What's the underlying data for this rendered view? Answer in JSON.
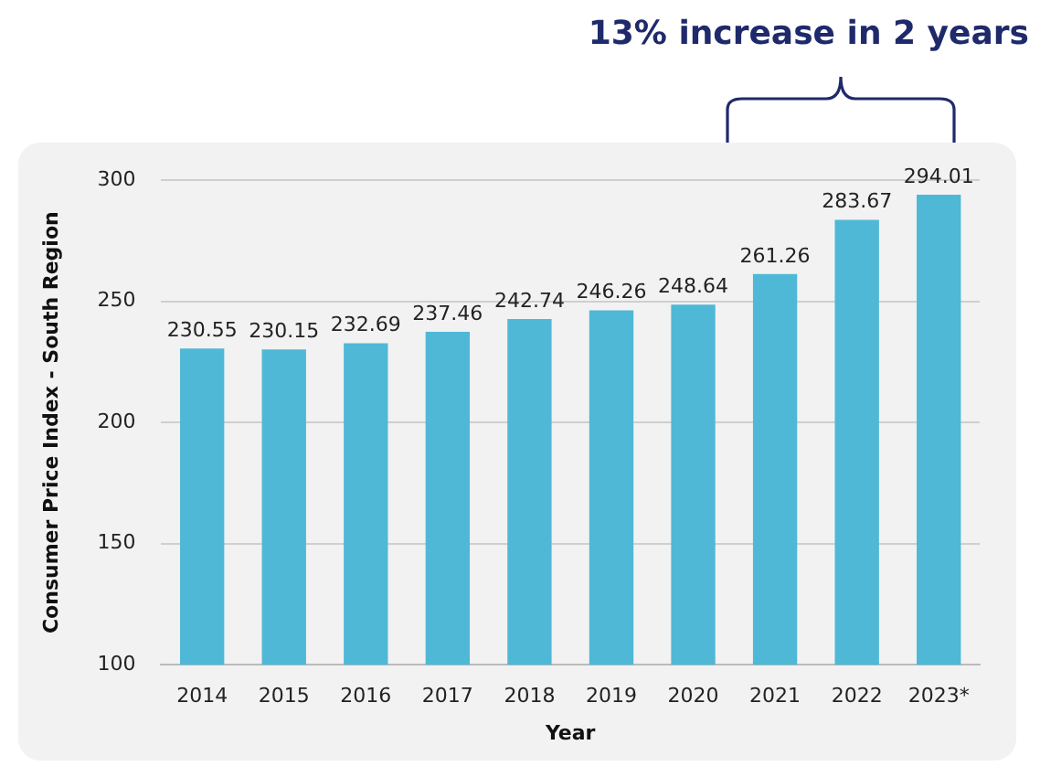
{
  "chart_data": {
    "type": "bar",
    "annotations": [
      "13% increase in 2 years"
    ],
    "xlabel": "Year",
    "ylabel": "Consumer Price Index - South Region",
    "categories": [
      "2014",
      "2015",
      "2016",
      "2017",
      "2018",
      "2019",
      "2020",
      "2021",
      "2022",
      "2023*"
    ],
    "values": [
      230.55,
      230.15,
      232.69,
      237.46,
      242.74,
      246.26,
      248.64,
      261.26,
      283.67,
      294.01
    ],
    "color": "#4fb8d6",
    "ylim": [
      100,
      300
    ],
    "yticks": [
      100,
      150,
      200,
      250,
      300
    ],
    "grid": "y",
    "data_labels": true,
    "legend": false
  }
}
